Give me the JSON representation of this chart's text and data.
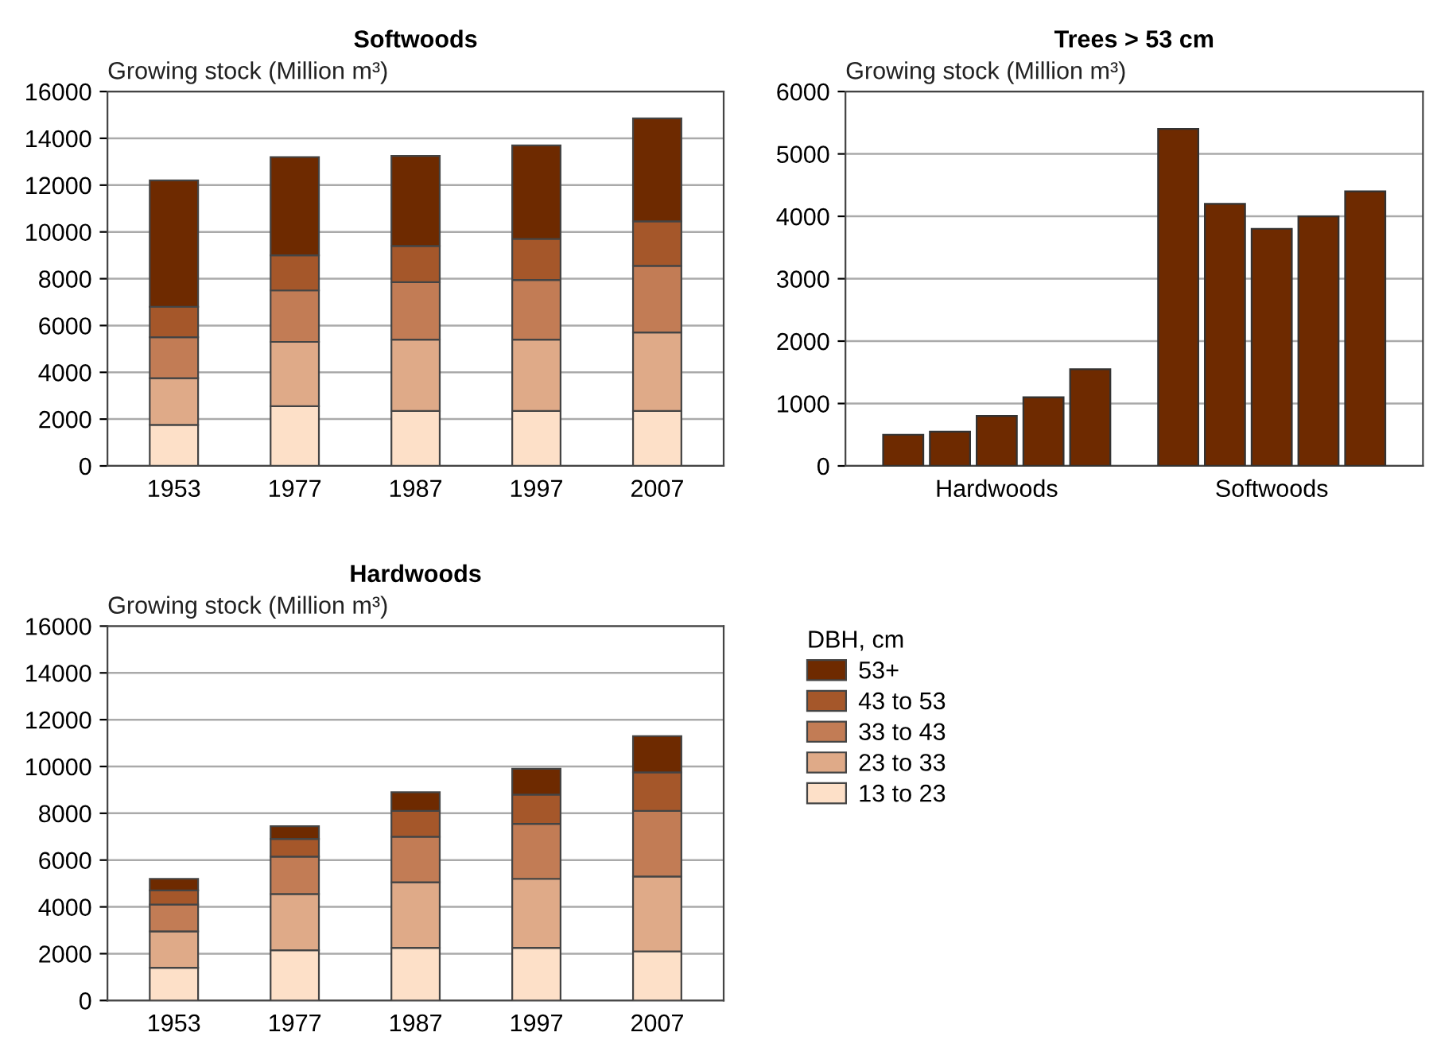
{
  "chart_data": [
    {
      "type": "bar",
      "title": "Softwoods",
      "ylabel": "Growing stock (Million m³)",
      "categories": [
        "1953",
        "1977",
        "1987",
        "1997",
        "2007"
      ],
      "stacked": true,
      "ylim": [
        0,
        16000
      ],
      "yticks": [
        0,
        2000,
        4000,
        6000,
        8000,
        10000,
        12000,
        14000,
        16000
      ],
      "grid": "y",
      "legend": "bottom right",
      "legend_title": "DBH, cm",
      "series": [
        {
          "name": "13 to 23",
          "color": "#fde0c8",
          "values": [
            1750,
            2550,
            2350,
            2350,
            2350
          ]
        },
        {
          "name": "23 to 33",
          "color": "#dfaa88",
          "values": [
            2000,
            2750,
            3050,
            3050,
            3350
          ]
        },
        {
          "name": "33 to 43",
          "color": "#c27c55",
          "values": [
            1750,
            2200,
            2450,
            2550,
            2850
          ]
        },
        {
          "name": "43 to 53",
          "color": "#a5572a",
          "values": [
            1300,
            1500,
            1550,
            1750,
            1900
          ]
        },
        {
          "name": "53+",
          "color": "#6e2a00",
          "values": [
            5400,
            4200,
            3850,
            4000,
            4400
          ]
        }
      ]
    },
    {
      "type": "bar",
      "title": "Trees > 53 cm",
      "ylabel": "Growing stock (Million m³)",
      "categories": [
        "Hardwoods",
        "Softwoods"
      ],
      "ylim": [
        0,
        6000
      ],
      "yticks": [
        0,
        1000,
        2000,
        3000,
        4000,
        5000,
        6000
      ],
      "grid": "y",
      "legend": false,
      "series": [
        {
          "color": "#6e2a00",
          "values": [
            500,
            5400
          ]
        },
        {
          "color": "#6e2a00",
          "values": [
            550,
            4200
          ]
        },
        {
          "color": "#6e2a00",
          "values": [
            800,
            3800
          ]
        },
        {
          "color": "#6e2a00",
          "values": [
            1100,
            4000
          ]
        },
        {
          "color": "#6e2a00",
          "values": [
            1550,
            4400
          ]
        }
      ]
    },
    {
      "type": "bar",
      "title": "Hardwoods",
      "ylabel": "Growing stock (Million m³)",
      "categories": [
        "1953",
        "1977",
        "1987",
        "1997",
        "2007"
      ],
      "stacked": true,
      "ylim": [
        0,
        16000
      ],
      "yticks": [
        0,
        2000,
        4000,
        6000,
        8000,
        10000,
        12000,
        14000,
        16000
      ],
      "grid": "y",
      "series": [
        {
          "color": "#fde0c8",
          "values": [
            1400,
            2150,
            2250,
            2250,
            2100
          ]
        },
        {
          "color": "#dfaa88",
          "values": [
            1550,
            2400,
            2800,
            2950,
            3200
          ]
        },
        {
          "color": "#c27c55",
          "values": [
            1150,
            1600,
            1950,
            2350,
            2800
          ]
        },
        {
          "color": "#a5572a",
          "values": [
            600,
            750,
            1100,
            1250,
            1650
          ]
        },
        {
          "color": "#6e2a00",
          "values": [
            500,
            550,
            800,
            1100,
            1550
          ]
        }
      ]
    }
  ]
}
